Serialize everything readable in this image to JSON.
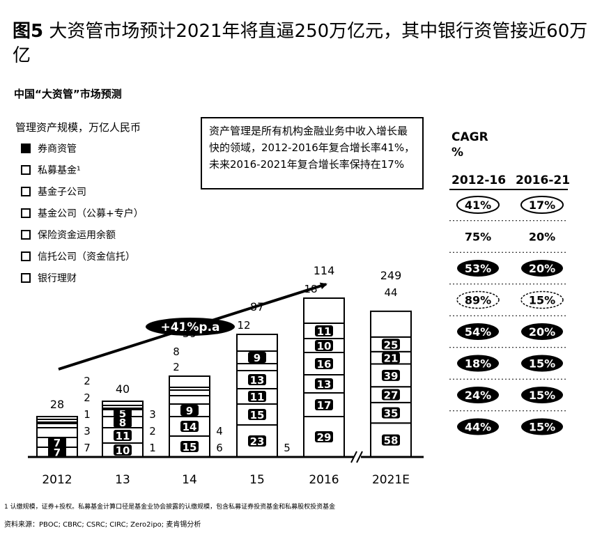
{
  "figure": {
    "number": "图5",
    "title": "大资管市场预计2021年将直逼250万亿元，其中银行资管接近60万亿"
  },
  "chart_data": {
    "type": "bar",
    "stacked": true,
    "title": "中国“大资管”市场预测",
    "unit_label": "管理资产规模，万亿人民币",
    "categories": [
      "2012",
      "13",
      "14",
      "15",
      "2016",
      "2021E"
    ],
    "series": [
      {
        "name": "银行理财",
        "values": [
          7,
          10,
          15,
          23,
          29,
          58
        ]
      },
      {
        "name": "信托公司（资金信托）",
        "values": [
          7,
          11,
          14,
          15,
          17,
          35
        ]
      },
      {
        "name": "保险资金运用余额",
        "values": [
          7,
          8,
          9,
          11,
          13,
          27
        ]
      },
      {
        "name": "基金公司（公募+专户）",
        "values": [
          3,
          5,
          6,
          13,
          16,
          39
        ]
      },
      {
        "name": "基金子公司",
        "values": [
          1,
          1,
          4,
          5,
          10,
          21
        ]
      },
      {
        "name": "私募基金¹",
        "values": [
          2,
          2,
          2,
          9,
          11,
          25
        ]
      },
      {
        "name": "券商资管",
        "values": [
          2,
          3,
          8,
          12,
          18,
          44
        ]
      }
    ],
    "totals": [
      28,
      40,
      59,
      87,
      114,
      249
    ],
    "label_sides": {
      "2012": [
        "in",
        "in",
        "right",
        "right",
        "right",
        "right",
        "right"
      ],
      "13": [
        "in",
        "in",
        "in",
        "in",
        "right",
        "right",
        "right"
      ],
      "14": [
        "in",
        "in",
        "in",
        "right",
        "right",
        "left",
        "left"
      ],
      "15": [
        "in",
        "in",
        "in",
        "in",
        "right",
        "in",
        "left"
      ],
      "2016": [
        "in",
        "in",
        "in",
        "in",
        "in",
        "in",
        "left"
      ],
      "2021E": [
        "in",
        "in",
        "in",
        "in",
        "in",
        "in",
        "above"
      ]
    },
    "growth_annotation": "+41%p.a",
    "axis_break_between": [
      "2016",
      "2021E"
    ],
    "legend_position": "top-left"
  },
  "callout": {
    "text": "资产管理是所有机构金融业务中收入增长最快的领域，2012-2016年复合增长率41%，未来2016-2021年复合增长率保持在17%"
  },
  "cagr": {
    "header": "CAGR",
    "unit": "%",
    "col1": "2012-16",
    "col2": "2016-21",
    "rows": [
      {
        "a": "41%",
        "b": "17%",
        "style": "outline"
      },
      {
        "a": "75%",
        "b": "20%",
        "style": "plain"
      },
      {
        "a": "53%",
        "b": "20%",
        "style": "solid"
      },
      {
        "a": "89%",
        "b": "15%",
        "style": "light"
      },
      {
        "a": "54%",
        "b": "20%",
        "style": "solid"
      },
      {
        "a": "18%",
        "b": "15%",
        "style": "solid"
      },
      {
        "a": "24%",
        "b": "15%",
        "style": "solid"
      },
      {
        "a": "44%",
        "b": "15%",
        "style": "solid"
      }
    ]
  },
  "footnote": "1 认缴规模，证券+投权。私募基金计算口径是基金业协会披露的认缴规模，包含私募证券投资基金和私募股权投资基金",
  "source": "资料来源：PBOC; CBRC; CSRC; CIRC; Zero2ipo; 麦肯锡分析",
  "colors": {
    "ink": "#000000",
    "paper": "#ffffff",
    "legend_fills": [
      "#ffffff",
      "#ffffff",
      "#ffffff",
      "#ffffff",
      "#ffffff",
      "#ffffff",
      "#000000"
    ]
  }
}
